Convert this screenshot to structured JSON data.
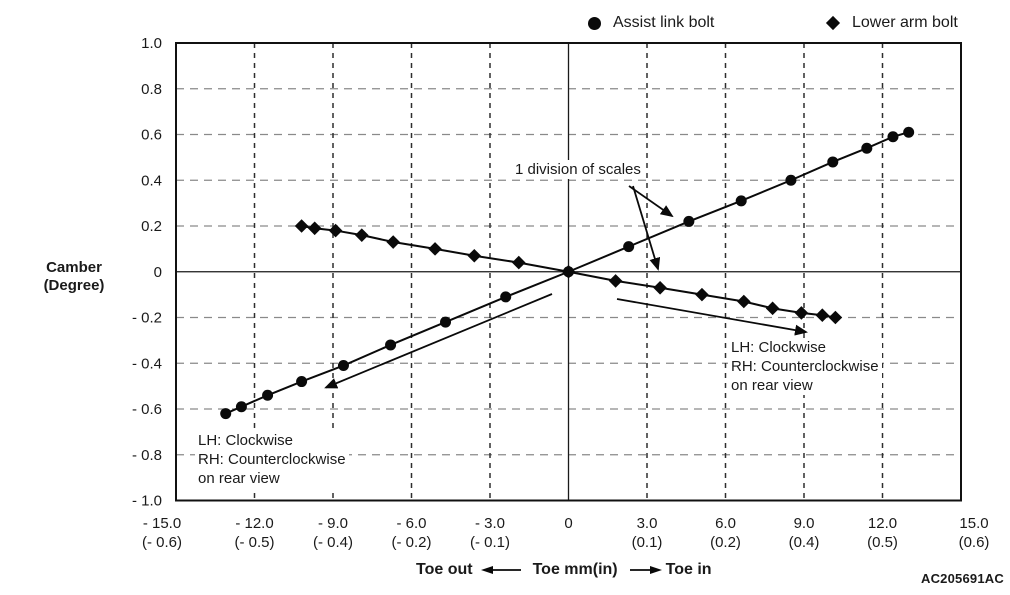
{
  "legend": {
    "items": [
      {
        "icon": "circle",
        "label": "Assist link bolt"
      },
      {
        "icon": "diamond",
        "label": "Lower arm bolt"
      }
    ]
  },
  "figure_code": "AC205691AC",
  "chart_data": {
    "type": "line",
    "title": "",
    "ylabel_lines": [
      "Camber",
      "(Degree)"
    ],
    "x_axis_title": {
      "left": "Toe out",
      "center": "Toe mm(in)",
      "right": "Toe in"
    },
    "xlim": [
      -15,
      15
    ],
    "ylim": [
      -1,
      1
    ],
    "grid": "dashed, at every labeled tick; solid zero axes",
    "legend_position": "top",
    "x_ticks": [
      {
        "value": -15,
        "mm": "- 15.0",
        "inch": "(- 0.6)"
      },
      {
        "value": -12,
        "mm": "- 12.0",
        "inch": "(- 0.5)"
      },
      {
        "value": -9,
        "mm": "- 9.0",
        "inch": "(- 0.4)"
      },
      {
        "value": -6,
        "mm": "- 6.0",
        "inch": "(- 0.2)"
      },
      {
        "value": -3,
        "mm": "- 3.0",
        "inch": "(- 0.1)"
      },
      {
        "value": 0,
        "mm": "0",
        "inch": ""
      },
      {
        "value": 3,
        "mm": "3.0",
        "inch": "(0.1)"
      },
      {
        "value": 6,
        "mm": "6.0",
        "inch": "(0.2)"
      },
      {
        "value": 9,
        "mm": "9.0",
        "inch": "(0.4)"
      },
      {
        "value": 12,
        "mm": "12.0",
        "inch": "(0.5)"
      },
      {
        "value": 15,
        "mm": "15.0",
        "inch": "(0.6)"
      }
    ],
    "y_ticks": [
      {
        "value": 1.0,
        "label": "1.0"
      },
      {
        "value": 0.8,
        "label": "0.8"
      },
      {
        "value": 0.6,
        "label": "0.6"
      },
      {
        "value": 0.4,
        "label": "0.4"
      },
      {
        "value": 0.2,
        "label": "0.2"
      },
      {
        "value": 0,
        "label": "0"
      },
      {
        "value": -0.2,
        "label": "- 0.2"
      },
      {
        "value": -0.4,
        "label": "- 0.4"
      },
      {
        "value": -0.6,
        "label": "- 0.6"
      },
      {
        "value": -0.8,
        "label": "- 0.8"
      },
      {
        "value": -1.0,
        "label": "- 1.0"
      }
    ],
    "series": [
      {
        "name": "Lower arm bolt",
        "marker": "diamond",
        "points": [
          [
            -10.2,
            0.2
          ],
          [
            -9.7,
            0.19
          ],
          [
            -8.9,
            0.18
          ],
          [
            -7.9,
            0.16
          ],
          [
            -6.7,
            0.13
          ],
          [
            -5.1,
            0.1
          ],
          [
            -3.6,
            0.07
          ],
          [
            -1.9,
            0.04
          ],
          [
            0,
            0
          ],
          [
            1.8,
            -0.04
          ],
          [
            3.5,
            -0.07
          ],
          [
            5.1,
            -0.1
          ],
          [
            6.7,
            -0.13
          ],
          [
            7.8,
            -0.16
          ],
          [
            8.9,
            -0.18
          ],
          [
            9.7,
            -0.19
          ],
          [
            10.2,
            -0.2
          ]
        ]
      },
      {
        "name": "Assist link bolt",
        "marker": "circle",
        "points": [
          [
            -13.1,
            -0.62
          ],
          [
            -12.5,
            -0.59
          ],
          [
            -11.5,
            -0.54
          ],
          [
            -10.2,
            -0.48
          ],
          [
            -8.6,
            -0.41
          ],
          [
            -6.8,
            -0.32
          ],
          [
            -4.7,
            -0.22
          ],
          [
            -2.4,
            -0.11
          ],
          [
            0,
            0
          ],
          [
            2.3,
            0.11
          ],
          [
            4.6,
            0.22
          ],
          [
            6.6,
            0.31
          ],
          [
            8.5,
            0.4
          ],
          [
            10.1,
            0.48
          ],
          [
            11.4,
            0.54
          ],
          [
            12.4,
            0.59
          ],
          [
            13.0,
            0.61
          ]
        ]
      }
    ],
    "annotations": {
      "one_division": {
        "text": "1 division of scales"
      },
      "rotation_left": {
        "lines": [
          "LH: Clockwise",
          "RH: Counterclockwise",
          "on rear view"
        ]
      },
      "rotation_right": {
        "lines": [
          "LH: Clockwise",
          "RH: Counterclockwise",
          "on rear view"
        ]
      }
    }
  }
}
